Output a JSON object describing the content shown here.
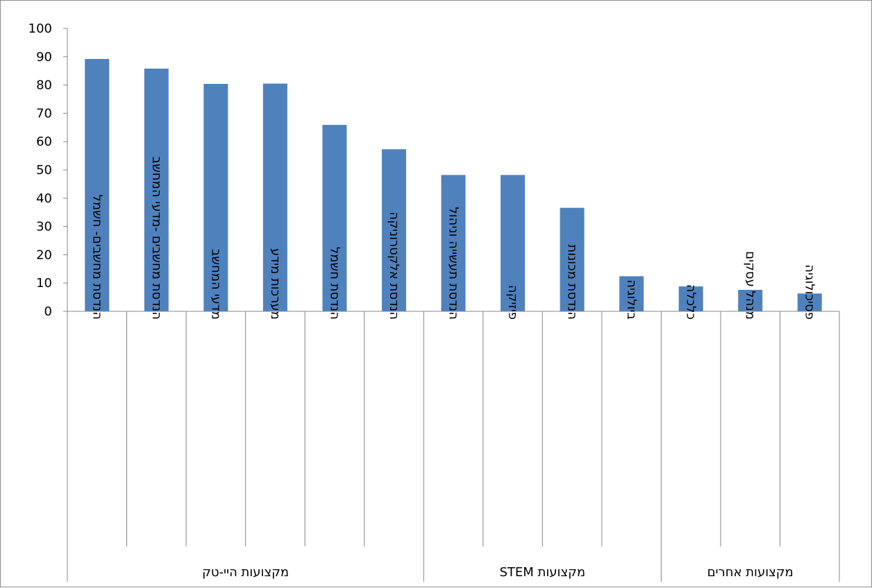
{
  "chart_data": {
    "type": "bar",
    "title": "",
    "xlabel": "",
    "ylabel": "",
    "ylim": [
      0,
      100
    ],
    "yticks": [
      0,
      10,
      20,
      30,
      40,
      50,
      60,
      70,
      80,
      90,
      100
    ],
    "grid": false,
    "legend": "none",
    "bar_color": "#4f81bd",
    "categories": [
      "הנדסת מחשבים- חשמל",
      "הנדסת מחשבים -מדעי המחשב",
      "מדעי המחשב",
      "מערכות מידע",
      "הנדסת חשמל",
      "הנדסת אלקטרוניקה",
      "הנדסת תעשייה וניהול",
      "פיזיקה",
      "הנדסת מכונות",
      "ביולוגיה",
      "כלכלה",
      "מנהל עסקים",
      "פסיכולוגיה"
    ],
    "values": [
      89.2,
      85.8,
      80.4,
      80.5,
      65.9,
      57.3,
      48.2,
      48.2,
      36.6,
      12.4,
      8.8,
      7.6,
      6.3
    ],
    "groups": [
      {
        "label": "מקצועות היי-טק",
        "start": 0,
        "end": 5
      },
      {
        "label": "מקצועות STEM",
        "start": 6,
        "end": 9
      },
      {
        "label": "מקצועות אחרים",
        "start": 10,
        "end": 12
      }
    ]
  }
}
